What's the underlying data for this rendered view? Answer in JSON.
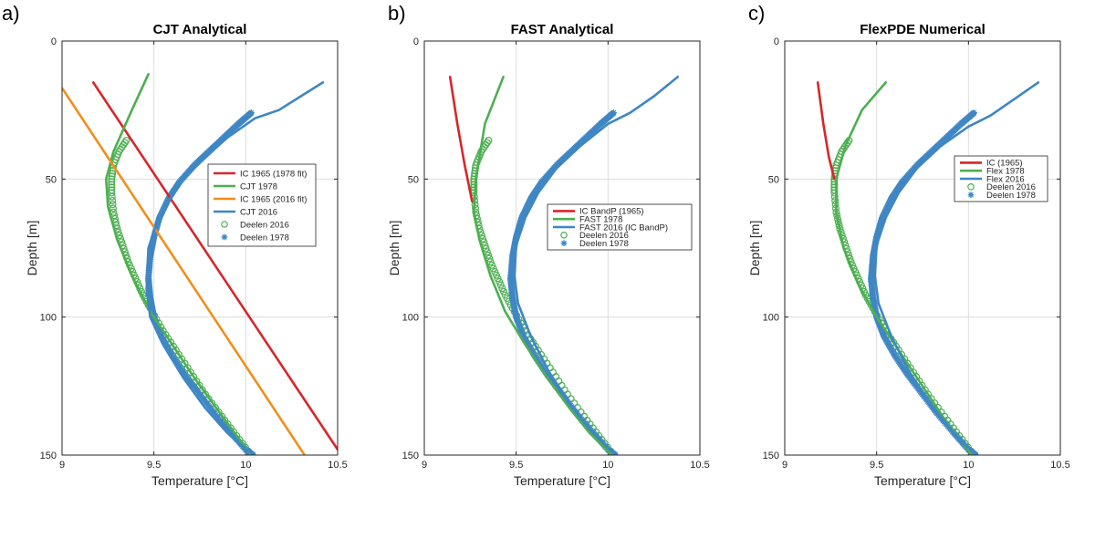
{
  "figure": {
    "colors": {
      "red": "#d7262b",
      "green": "#4caf50",
      "orange": "#f28e1c",
      "blue": "#3f86c4",
      "grid": "#dcdcdc",
      "axis": "#262626"
    }
  },
  "chart_data": [
    {
      "type": "line",
      "panel_label": "a)",
      "title": "CJT Analytical",
      "xlabel": "Temperature [°C]",
      "ylabel": "Depth [m]",
      "xlim": [
        9,
        10.5
      ],
      "ylim": [
        0,
        150
      ],
      "y_reversed": true,
      "xticks": [
        "9",
        "9.5",
        "10",
        "10.5"
      ],
      "yticks": [
        "0",
        "50",
        "100",
        "150"
      ],
      "grid": true,
      "legend_position": "right-middle",
      "series": [
        {
          "name": "IC 1965 (1978 fit)",
          "style": "line",
          "color": "red",
          "x": [
            9.17,
            10.5
          ],
          "y": [
            15,
            148
          ]
        },
        {
          "name": "CJT 1978",
          "style": "line",
          "color": "green",
          "x": [
            9.47,
            9.38,
            9.28,
            9.24,
            9.25,
            9.3,
            9.38,
            9.48,
            9.6,
            9.72,
            9.84,
            9.94,
            10.03
          ],
          "y": [
            12,
            25,
            40,
            50,
            60,
            72,
            85,
            98,
            110,
            122,
            133,
            142,
            150
          ]
        },
        {
          "name": "IC 1965 (2016 fit)",
          "style": "line",
          "color": "orange",
          "x": [
            9.0,
            10.32
          ],
          "y": [
            17,
            150
          ]
        },
        {
          "name": "CJT 2016",
          "style": "line",
          "color": "blue",
          "x": [
            10.42,
            10.3,
            10.18,
            10.05,
            9.9,
            9.78,
            9.66,
            9.58,
            9.52,
            9.47,
            9.46,
            9.48,
            9.55,
            9.66,
            9.78,
            9.9,
            10.04
          ],
          "y": [
            15,
            20,
            25,
            28,
            35,
            42,
            50,
            58,
            65,
            75,
            90,
            100,
            110,
            122,
            133,
            142,
            150
          ]
        },
        {
          "name": "Deelen 2016",
          "style": "circle",
          "color": "green",
          "x": [
            9.35,
            9.31,
            9.28,
            9.27,
            9.27,
            9.28,
            9.3,
            9.33,
            9.36,
            9.4,
            9.44,
            9.49,
            9.55,
            9.62,
            9.7,
            9.78,
            9.87,
            9.95,
            10.03
          ],
          "y": [
            36,
            40,
            45,
            50,
            55,
            62,
            68,
            74,
            80,
            86,
            92,
            98,
            105,
            112,
            120,
            128,
            136,
            143,
            150
          ]
        },
        {
          "name": "Deelen 1978",
          "style": "star",
          "color": "blue",
          "x": [
            10.03,
            9.96,
            9.88,
            9.8,
            9.72,
            9.64,
            9.58,
            9.53,
            9.5,
            9.48,
            9.47,
            9.48,
            9.5,
            9.54,
            9.6,
            9.67,
            9.75,
            9.83,
            9.92,
            10.0,
            10.04
          ],
          "y": [
            26,
            30,
            35,
            40,
            45,
            51,
            57,
            64,
            71,
            78,
            86,
            93,
            100,
            107,
            114,
            121,
            128,
            135,
            142,
            148,
            150
          ]
        }
      ]
    },
    {
      "type": "line",
      "panel_label": "b)",
      "title": "FAST Analytical",
      "xlabel": "Temperature [°C]",
      "ylabel": "Depth [m]",
      "xlim": [
        9,
        10.5
      ],
      "ylim": [
        0,
        150
      ],
      "y_reversed": true,
      "xticks": [
        "9",
        "9.5",
        "10",
        "10.5"
      ],
      "yticks": [
        "0",
        "50",
        "100",
        "150"
      ],
      "grid": true,
      "legend_position": "right-middle",
      "series": [
        {
          "name": "IC BandP (1965)",
          "style": "line",
          "color": "red",
          "x": [
            9.14,
            9.18,
            9.22,
            9.26
          ],
          "y": [
            13,
            30,
            45,
            58
          ]
        },
        {
          "name": "FAST 1978",
          "style": "line",
          "color": "green",
          "x": [
            9.43,
            9.33,
            9.28,
            9.27,
            9.3,
            9.36,
            9.44,
            9.55,
            9.67,
            9.79,
            9.9,
            10.02
          ],
          "y": [
            13,
            30,
            50,
            62,
            72,
            85,
            98,
            110,
            122,
            133,
            142,
            150
          ]
        },
        {
          "name": "FAST 2016 (IC BandP)",
          "style": "line",
          "color": "blue",
          "x": [
            10.38,
            10.25,
            10.12,
            10.0,
            9.85,
            9.72,
            9.62,
            9.55,
            9.5,
            9.49,
            9.51,
            9.58,
            9.68,
            9.8,
            9.92,
            10.04
          ],
          "y": [
            13,
            20,
            26,
            30,
            38,
            46,
            55,
            64,
            74,
            85,
            95,
            107,
            120,
            132,
            142,
            150
          ]
        },
        {
          "name": "Deelen 2016",
          "style": "circle",
          "color": "green",
          "x": [
            9.35,
            9.31,
            9.28,
            9.27,
            9.27,
            9.28,
            9.3,
            9.33,
            9.36,
            9.4,
            9.44,
            9.49,
            9.55,
            9.62,
            9.7,
            9.78,
            9.87,
            9.95,
            10.03
          ],
          "y": [
            36,
            40,
            45,
            50,
            55,
            62,
            68,
            74,
            80,
            86,
            92,
            98,
            105,
            112,
            120,
            128,
            136,
            143,
            150
          ]
        },
        {
          "name": "Deelen 1978",
          "style": "star",
          "color": "blue",
          "x": [
            10.03,
            9.96,
            9.88,
            9.8,
            9.72,
            9.64,
            9.58,
            9.53,
            9.5,
            9.48,
            9.47,
            9.48,
            9.5,
            9.54,
            9.6,
            9.67,
            9.75,
            9.83,
            9.92,
            10.0,
            10.04
          ],
          "y": [
            26,
            30,
            35,
            40,
            45,
            51,
            57,
            64,
            71,
            78,
            86,
            93,
            100,
            107,
            114,
            121,
            128,
            135,
            142,
            148,
            150
          ]
        }
      ]
    },
    {
      "type": "line",
      "panel_label": "c)",
      "title": "FlexPDE Numerical",
      "xlabel": "Temperature [°C]",
      "ylabel": "Depth [m]",
      "xlim": [
        9,
        10.5
      ],
      "ylim": [
        0,
        150
      ],
      "y_reversed": true,
      "xticks": [
        "9",
        "9.5",
        "10",
        "10.5"
      ],
      "yticks": [
        "0",
        "50",
        "100",
        "150"
      ],
      "grid": true,
      "legend_position": "right-upper",
      "series": [
        {
          "name": "IC (1965)",
          "style": "line",
          "color": "red",
          "x": [
            9.18,
            9.21,
            9.24,
            9.27
          ],
          "y": [
            15,
            30,
            42,
            50
          ]
        },
        {
          "name": "Flex 1978",
          "style": "line",
          "color": "green",
          "x": [
            9.55,
            9.42,
            9.33,
            9.28,
            9.28,
            9.32,
            9.4,
            9.5,
            9.62,
            9.75,
            9.88,
            10.02
          ],
          "y": [
            15,
            25,
            38,
            50,
            62,
            75,
            88,
            100,
            112,
            125,
            138,
            150
          ]
        },
        {
          "name": "Flex 2016",
          "style": "line",
          "color": "blue",
          "x": [
            10.38,
            10.25,
            10.12,
            10.0,
            9.85,
            9.72,
            9.62,
            9.55,
            9.5,
            9.49,
            9.51,
            9.58,
            9.68,
            9.8,
            9.92,
            10.04
          ],
          "y": [
            15,
            21,
            27,
            31,
            38,
            46,
            55,
            64,
            74,
            85,
            95,
            107,
            120,
            132,
            142,
            150
          ]
        },
        {
          "name": "Deelen 2016",
          "style": "circle",
          "color": "green",
          "x": [
            9.35,
            9.31,
            9.28,
            9.27,
            9.27,
            9.28,
            9.3,
            9.33,
            9.36,
            9.4,
            9.44,
            9.49,
            9.55,
            9.62,
            9.7,
            9.78,
            9.87,
            9.95,
            10.03
          ],
          "y": [
            36,
            40,
            45,
            50,
            55,
            62,
            68,
            74,
            80,
            86,
            92,
            98,
            105,
            112,
            120,
            128,
            136,
            143,
            150
          ]
        },
        {
          "name": "Deelen 1978",
          "style": "star",
          "color": "blue",
          "x": [
            10.03,
            9.96,
            9.88,
            9.8,
            9.72,
            9.64,
            9.58,
            9.53,
            9.5,
            9.48,
            9.47,
            9.48,
            9.5,
            9.54,
            9.6,
            9.67,
            9.75,
            9.83,
            9.92,
            10.0,
            10.04
          ],
          "y": [
            26,
            30,
            35,
            40,
            45,
            51,
            57,
            64,
            71,
            78,
            86,
            93,
            100,
            107,
            114,
            121,
            128,
            135,
            142,
            148,
            150
          ]
        }
      ]
    }
  ]
}
